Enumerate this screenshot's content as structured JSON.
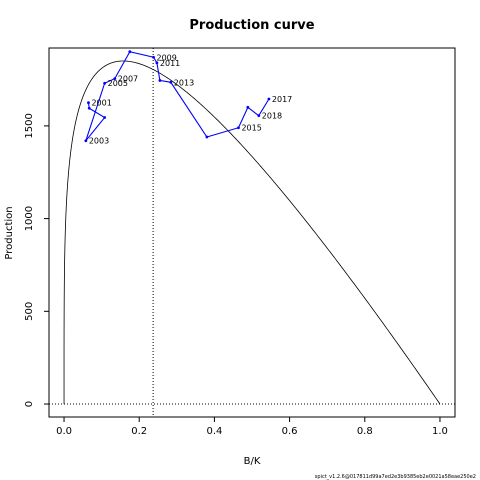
{
  "chart_data": {
    "type": "line",
    "title": "Production curve",
    "xlabel": "B/K",
    "ylabel": "Production",
    "xlim": [
      -0.04,
      1.04
    ],
    "ylim": [
      -70,
      1920
    ],
    "x_ticks": [
      0.0,
      0.2,
      0.4,
      0.6,
      0.8,
      1.0
    ],
    "x_tick_labels": [
      "0.0",
      "0.2",
      "0.4",
      "0.6",
      "0.8",
      "1.0"
    ],
    "y_ticks": [
      0,
      500,
      1000,
      1500
    ],
    "y_tick_labels": [
      "0",
      "500",
      "1000",
      "1500"
    ],
    "grid": false,
    "reference_lines": {
      "vertical_x": 0.237,
      "horizontal_y": 0
    },
    "series": [
      {
        "role": "theoretical-curve",
        "color": "#000000",
        "shape_exponent": 0.25,
        "peak_production": 1850,
        "x_range": [
          0,
          1
        ]
      },
      {
        "role": "observed-path",
        "color": "#0000ff",
        "points": [
          {
            "x": 0.065,
            "y": 1625,
            "label": "2001"
          },
          {
            "x": 0.067,
            "y": 1595,
            "label": ""
          },
          {
            "x": 0.108,
            "y": 1545,
            "label": ""
          },
          {
            "x": 0.058,
            "y": 1420,
            "label": "2003"
          },
          {
            "x": 0.108,
            "y": 1730,
            "label": "2005"
          },
          {
            "x": 0.135,
            "y": 1755,
            "label": "2007"
          },
          {
            "x": 0.175,
            "y": 1900,
            "label": ""
          },
          {
            "x": 0.238,
            "y": 1870,
            "label": "2009"
          },
          {
            "x": 0.247,
            "y": 1840,
            "label": "2011"
          },
          {
            "x": 0.255,
            "y": 1745,
            "label": ""
          },
          {
            "x": 0.284,
            "y": 1735,
            "label": "2013"
          },
          {
            "x": 0.38,
            "y": 1440,
            "label": ""
          },
          {
            "x": 0.464,
            "y": 1490,
            "label": "2015"
          },
          {
            "x": 0.489,
            "y": 1600,
            "label": ""
          },
          {
            "x": 0.518,
            "y": 1555,
            "label": "2018"
          },
          {
            "x": 0.545,
            "y": 1645,
            "label": "2017"
          }
        ]
      }
    ]
  },
  "footer_text": "spict_v1.2.6@017811d99a7ed2e3b9385eb2e0021a58eae250e2"
}
